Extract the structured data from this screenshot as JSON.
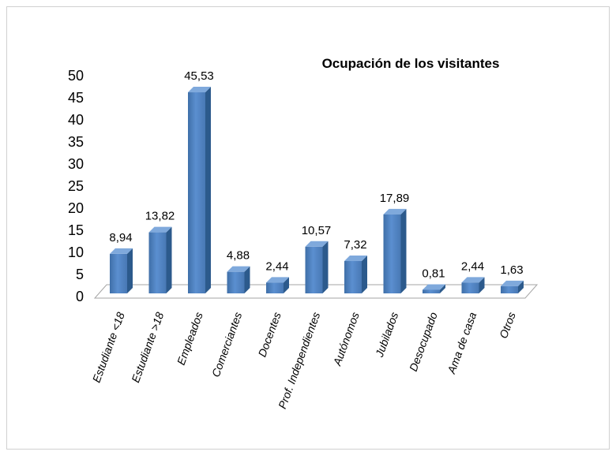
{
  "chart_data": {
    "type": "bar3d",
    "title": "Ocupación de los visitantes",
    "categories": [
      "Estudiante <18",
      "Estudiante >18",
      "Empleados",
      "Comerciantes",
      "Docentes",
      "Prof. Independientes",
      "Autónomos",
      "Jubilados",
      "Desocupado",
      "Ama de casa",
      "Otros"
    ],
    "values": [
      8.94,
      13.82,
      45.53,
      4.88,
      2.44,
      10.57,
      7.32,
      17.89,
      0.81,
      2.44,
      1.63
    ],
    "value_labels": [
      "8,94",
      "13,82",
      "45,53",
      "4,88",
      "2,44",
      "10,57",
      "7,32",
      "17,89",
      "0,81",
      "2,44",
      "1,63"
    ],
    "color": "#4f81bd",
    "ylim": [
      0,
      50
    ],
    "yticks": [
      0,
      5,
      10,
      15,
      20,
      25,
      30,
      35,
      40,
      45,
      50
    ]
  }
}
